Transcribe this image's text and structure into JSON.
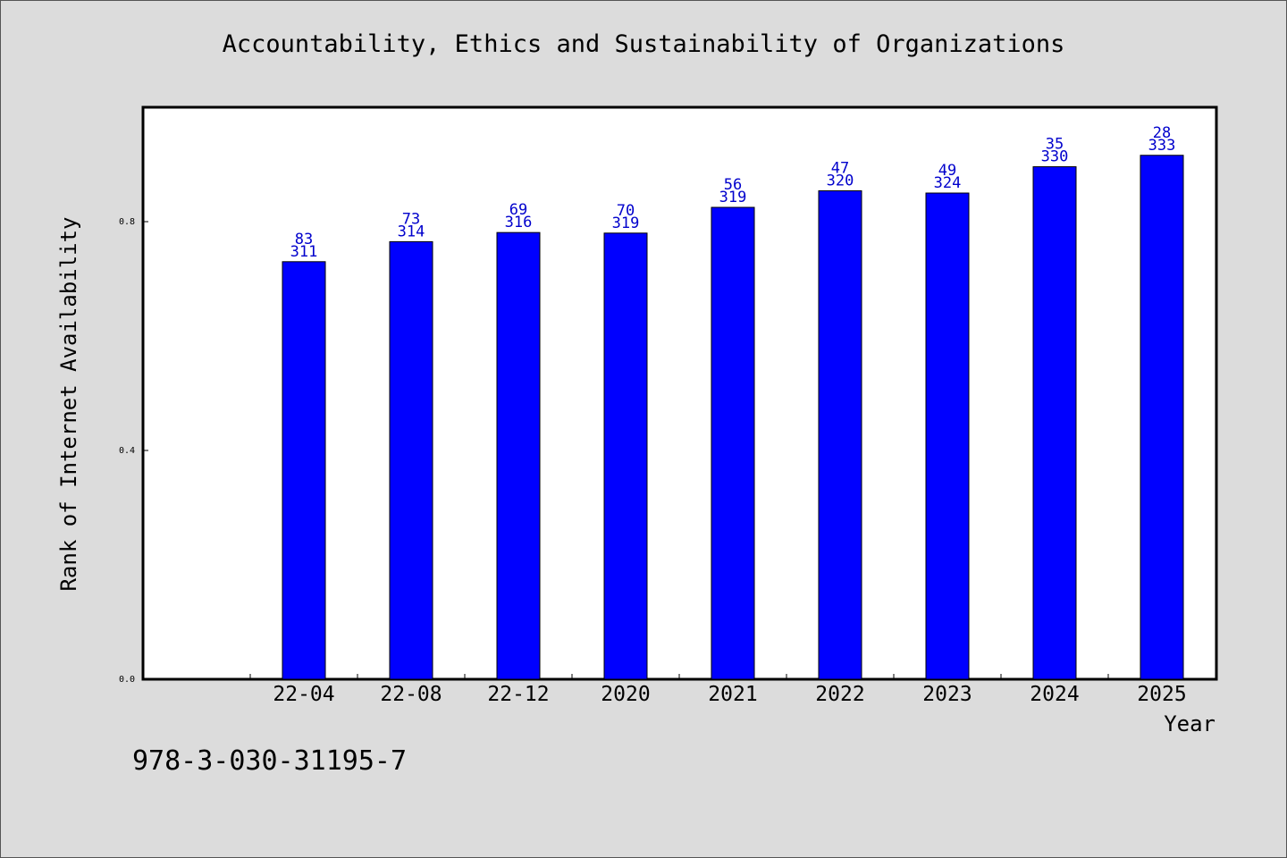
{
  "chart_data": {
    "type": "bar",
    "title": "Accountability, Ethics and Sustainability of Organizations",
    "xlabel": "Year",
    "ylabel": "Rank of Internet Availability",
    "categories": [
      "22-04",
      "22-08",
      "22-12",
      "2020",
      "2021",
      "2022",
      "2023",
      "2024",
      "2025"
    ],
    "values": [
      0.73,
      0.765,
      0.781,
      0.78,
      0.825,
      0.854,
      0.85,
      0.896,
      0.916
    ],
    "labels_top": [
      "83",
      "73",
      "69",
      "70",
      "56",
      "47",
      "49",
      "35",
      "28"
    ],
    "labels_bottom": [
      "311",
      "314",
      "316",
      "319",
      "319",
      "320",
      "324",
      "330",
      "333"
    ],
    "yticks": [
      0.0,
      0.4,
      0.8
    ],
    "ytick_labels": [
      "0.0",
      "0.4",
      "0.8"
    ],
    "ylim": [
      0,
      1.0
    ],
    "grid": false,
    "bar_color": "#0000ff",
    "label_color": "#0000cc"
  },
  "footer": {
    "isbn": "978-3-030-31195-7"
  }
}
